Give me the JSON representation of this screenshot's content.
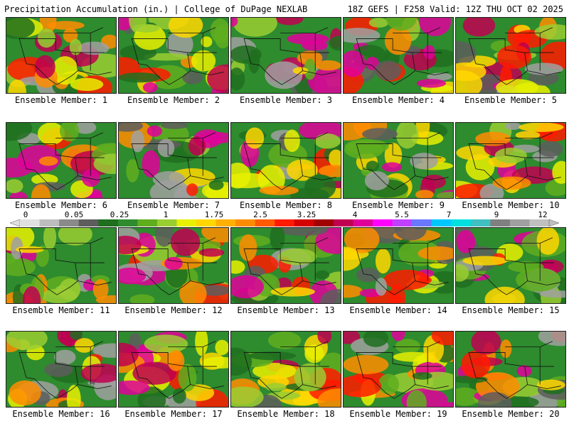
{
  "header": {
    "title": "Precipitation Accumulation (in.) | College of DuPage NEXLAB",
    "run_info": "18Z GEFS | F258 Valid: 12Z THU OCT 02 2025"
  },
  "panel_label_prefix": "Ensemble Member: ",
  "members": [
    "1",
    "2",
    "3",
    "4",
    "5",
    "6",
    "7",
    "8",
    "9",
    "10",
    "11",
    "12",
    "13",
    "14",
    "15",
    "16",
    "17",
    "18",
    "19",
    "20"
  ],
  "colorbar": {
    "tick_labels": [
      "0",
      "0.05",
      "0.25",
      "1",
      "1.75",
      "2.5",
      "3.25",
      "4",
      "5.5",
      "7",
      "9",
      "12"
    ],
    "colors": [
      "#e0e0e0",
      "#bdbdbd",
      "#8a8a8a",
      "#5d5d5d",
      "#1f6f1f",
      "#2e8b2e",
      "#5fae1e",
      "#9acd32",
      "#e8f000",
      "#ffd700",
      "#ffb000",
      "#ff8c00",
      "#ff5a00",
      "#ff1a00",
      "#d40000",
      "#a00000",
      "#c00050",
      "#e0009a",
      "#ff00ff",
      "#c040ff",
      "#6a78ff",
      "#00c8ff",
      "#00e0e0",
      "#40c0c0",
      "#808080",
      "#a0a0a0",
      "#c0c0c0"
    ]
  }
}
